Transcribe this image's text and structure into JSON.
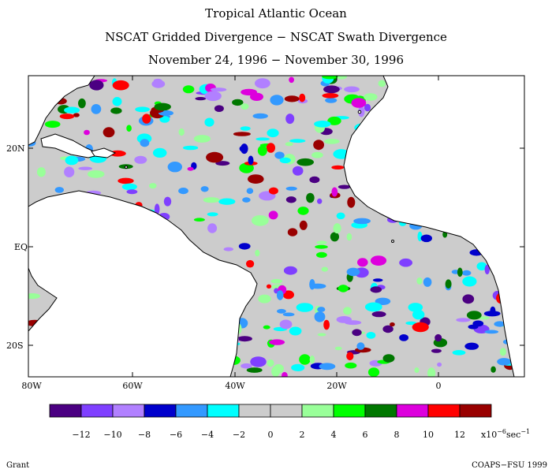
{
  "header": {
    "line1": "Tropical Atlantic Ocean",
    "line2": "NSCAT Gridded Divergence − NSCAT Swath Divergence",
    "line3": "November 24, 1996 − November 30, 1996"
  },
  "map": {
    "lat_labels": [
      "20N",
      "EQ",
      "20S"
    ],
    "lon_labels": [
      "80W",
      "60W",
      "40W",
      "20W",
      "0"
    ],
    "land_color": "#ffffff",
    "ocean_base_color": "#cccccc"
  },
  "legend": {
    "colors": [
      "#4b0082",
      "#7f3fff",
      "#b180ff",
      "#0000cc",
      "#3399ff",
      "#00ffff",
      "#cccccc",
      "#cccccc",
      "#99ff99",
      "#00ff00",
      "#007700",
      "#dd00dd",
      "#ff0000",
      "#990000"
    ],
    "labels": [
      "−12",
      "−10",
      "−8",
      "−6",
      "−4",
      "−2",
      "0",
      "2",
      "4",
      "6",
      "8",
      "10",
      "12"
    ],
    "unit_main": "x10",
    "unit_exp": "−6",
    "unit_tail": "sec",
    "unit_tail_exp": "−1"
  },
  "footer": {
    "left": "Grant",
    "right": "COAPS−FSU 1999"
  }
}
